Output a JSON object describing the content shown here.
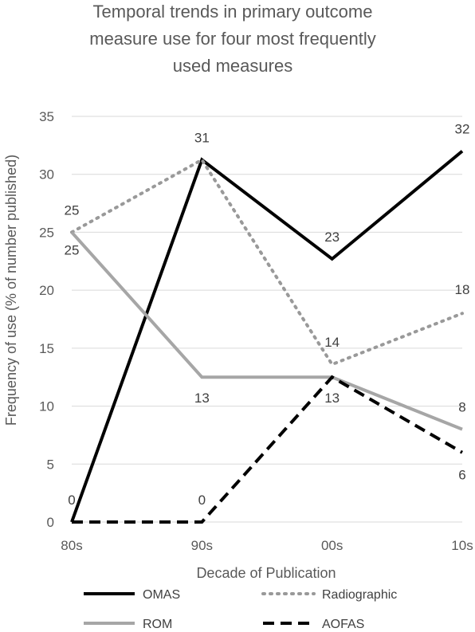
{
  "chart_data": {
    "type": "line",
    "title_lines": [
      "Temporal trends in primary outcome",
      "measure use for four most frequently",
      "used measures"
    ],
    "xlabel": "Decade of Publication",
    "ylabel": "Frequency of use (% of number published)",
    "categories": [
      "80s",
      "90s",
      "00s",
      "10s"
    ],
    "ylim": [
      0,
      35
    ],
    "yticks": [
      0,
      5,
      10,
      15,
      20,
      25,
      30,
      35
    ],
    "grid": true,
    "legend_position": "bottom",
    "series": [
      {
        "name": "OMAS",
        "values": [
          0,
          31.25,
          22.7,
          32
        ],
        "labels": [
          "0",
          "31",
          "23",
          "32"
        ],
        "color": "#000000",
        "style": "solid"
      },
      {
        "name": "Radiographic",
        "values": [
          25,
          31.25,
          13.6,
          18
        ],
        "labels": [
          "25",
          "",
          "14",
          "18"
        ],
        "color": "#999999",
        "style": "dotted"
      },
      {
        "name": "ROM",
        "values": [
          25,
          12.5,
          12.5,
          8
        ],
        "labels": [
          "25",
          "13",
          "13",
          "8"
        ],
        "color": "#a6a6a6",
        "style": "solid"
      },
      {
        "name": "AOFAS",
        "values": [
          0,
          0,
          12.5,
          6
        ],
        "labels": [
          "",
          "0",
          "",
          "6"
        ],
        "color": "#000000",
        "style": "dashed"
      }
    ]
  }
}
